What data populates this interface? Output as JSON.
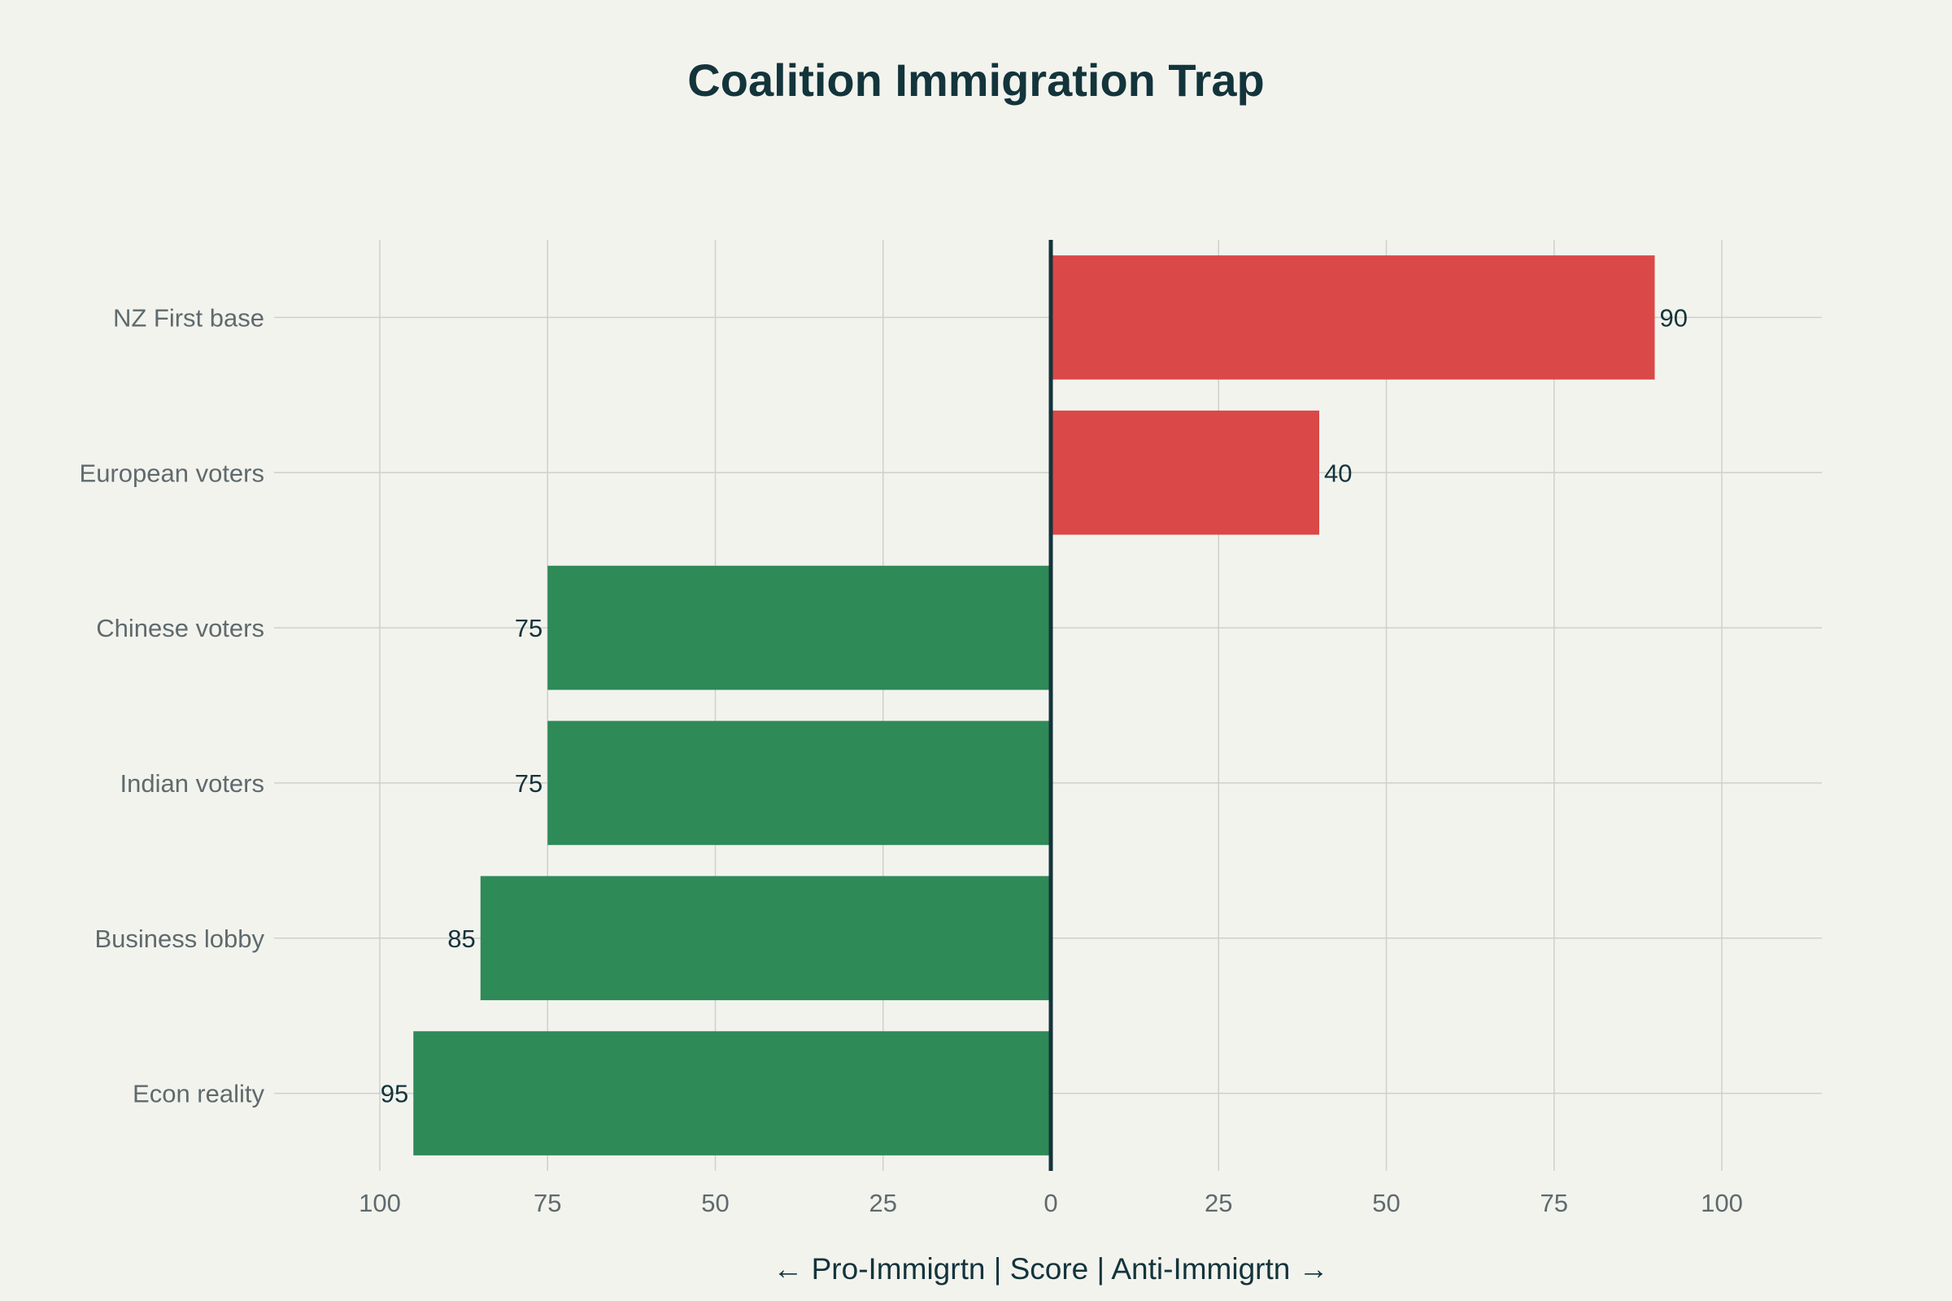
{
  "chart_data": {
    "type": "bar",
    "orientation": "horizontal-diverging",
    "title": "Coalition Immigration Trap",
    "xlabel": "← Pro-Immigrtn | Score | Anti-Immigrtn →",
    "ylabel": "",
    "xlim": [
      -115,
      115
    ],
    "xticks": [
      -100,
      -75,
      -50,
      -25,
      0,
      25,
      50,
      75,
      100
    ],
    "xtick_labels": [
      "100",
      "75",
      "50",
      "25",
      "0",
      "25",
      "50",
      "75",
      "100"
    ],
    "grid": true,
    "legend": "none",
    "categories": [
      "NZ First base",
      "European voters",
      "Chinese voters",
      "Indian voters",
      "Business lobby",
      "Econ reality"
    ],
    "values": [
      90,
      40,
      -75,
      -75,
      -85,
      -95
    ],
    "data_labels": [
      "90",
      "40",
      "75",
      "75",
      "85",
      "95"
    ],
    "colors": {
      "anti": "#db4848",
      "pro": "#2e8a57",
      "axis": "#13343b",
      "grid": "#cfd0cb",
      "background": "#f3f3ee"
    }
  }
}
